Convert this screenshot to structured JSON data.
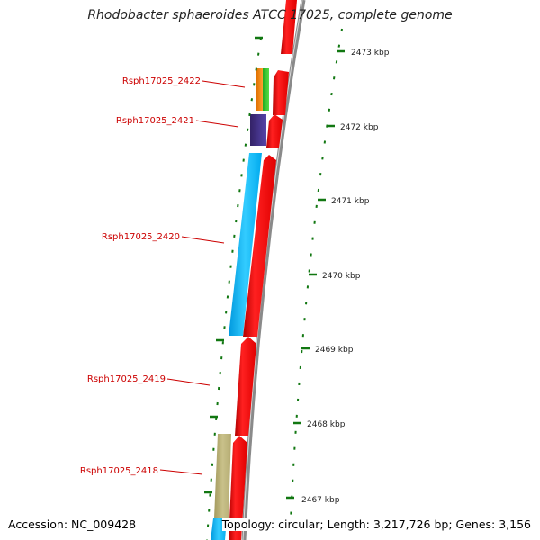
{
  "title": "Rhodobacter sphaeroides ATCC 17025, complete genome",
  "accession": "Accession: NC_009428",
  "topology": "Topology: circular; Length: 3,217,726 bp; Genes: 3,156",
  "ruler_labels": [
    "2473 kbp",
    "2472 kbp",
    "2471 kbp",
    "2470 kbp",
    "2469 kbp",
    "2468 kbp",
    "2467 kbp"
  ],
  "gene_labels": [
    "Rsph17025_2422",
    "Rsph17025_2421",
    "Rsph17025_2420",
    "Rsph17025_2419",
    "Rsph17025_2418"
  ],
  "colors": {
    "forward_strand": "#ff0000",
    "reverse_orange": "#ff8800",
    "reverse_green": "#33cc33",
    "reverse_purple": "#443388",
    "reverse_blue": "#00bbff",
    "reverse_khaki": "#bbb37a",
    "backbone": "#888888",
    "ticks": "#117711",
    "label_text": "#cc0000"
  }
}
